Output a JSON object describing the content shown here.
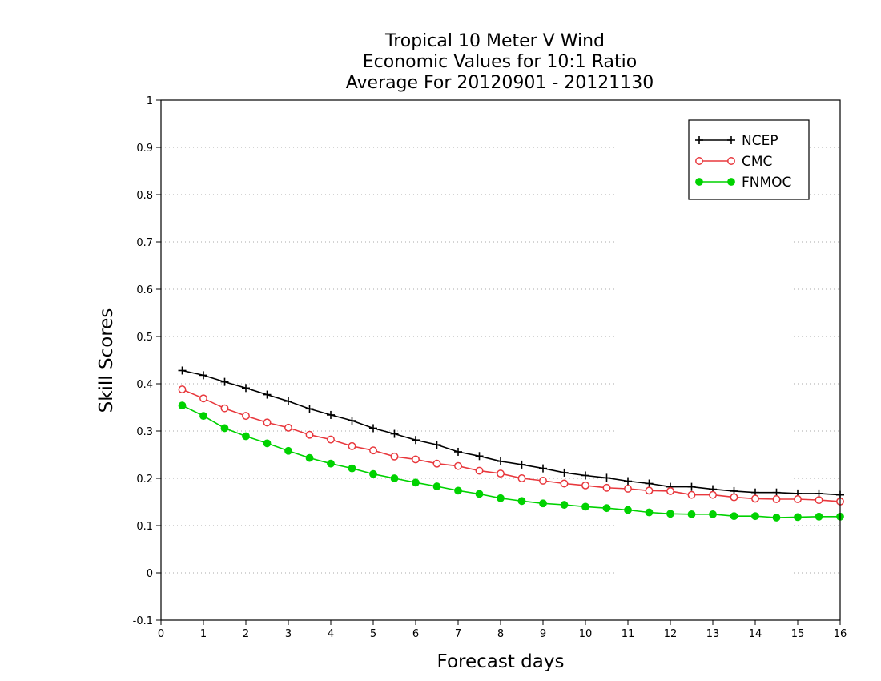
{
  "chart_data": {
    "type": "line",
    "title_lines": [
      "Tropical 10 Meter V Wind",
      "Economic Values for 10:1 Ratio",
      "Average For 20120901 - 20121130"
    ],
    "xlabel": "Forecast days",
    "ylabel": "Skill Scores",
    "xlim": [
      0,
      16
    ],
    "ylim": [
      -0.1,
      1
    ],
    "x_ticks": [
      0,
      1,
      2,
      3,
      4,
      5,
      6,
      7,
      8,
      9,
      10,
      11,
      12,
      13,
      14,
      15,
      16
    ],
    "y_ticks": [
      -0.1,
      0,
      0.1,
      0.2,
      0.3,
      0.4,
      0.5,
      0.6,
      0.7,
      0.8,
      0.9,
      1
    ],
    "y_tick_labels": [
      "-0.1",
      "0",
      "0.1",
      "0.2",
      "0.3",
      "0.4",
      "0.5",
      "0.6",
      "0.7",
      "0.8",
      "0.9",
      "1"
    ],
    "grid": "horizontal dotted",
    "legend_position": "top-right",
    "x": [
      0.5,
      1,
      1.5,
      2,
      2.5,
      3,
      3.5,
      4,
      4.5,
      5,
      5.5,
      6,
      6.5,
      7,
      7.5,
      8,
      8.5,
      9,
      9.5,
      10,
      10.5,
      11,
      11.5,
      12,
      12.5,
      13,
      13.5,
      14,
      14.5,
      15,
      15.5,
      16
    ],
    "series": [
      {
        "name": "NCEP",
        "color": "#000000",
        "marker": "plus",
        "values": [
          0.428,
          0.418,
          0.404,
          0.391,
          0.377,
          0.363,
          0.347,
          0.334,
          0.322,
          0.306,
          0.294,
          0.281,
          0.271,
          0.256,
          0.247,
          0.236,
          0.229,
          0.221,
          0.212,
          0.206,
          0.201,
          0.194,
          0.189,
          0.182,
          0.182,
          0.177,
          0.173,
          0.17,
          0.17,
          0.168,
          0.168,
          0.165
        ]
      },
      {
        "name": "CMC",
        "color": "#e8383d",
        "marker": "open-circle",
        "values": [
          0.388,
          0.369,
          0.348,
          0.332,
          0.318,
          0.307,
          0.292,
          0.282,
          0.268,
          0.259,
          0.246,
          0.24,
          0.231,
          0.226,
          0.216,
          0.21,
          0.2,
          0.195,
          0.189,
          0.185,
          0.18,
          0.178,
          0.174,
          0.173,
          0.165,
          0.165,
          0.16,
          0.157,
          0.156,
          0.156,
          0.154,
          0.151
        ]
      },
      {
        "name": "FNMOC",
        "color": "#00d200",
        "marker": "filled-circle",
        "values": [
          0.354,
          0.332,
          0.306,
          0.289,
          0.274,
          0.258,
          0.243,
          0.231,
          0.221,
          0.209,
          0.2,
          0.191,
          0.183,
          0.174,
          0.167,
          0.158,
          0.152,
          0.147,
          0.144,
          0.14,
          0.137,
          0.133,
          0.128,
          0.125,
          0.124,
          0.124,
          0.12,
          0.12,
          0.117,
          0.118,
          0.119,
          0.119
        ]
      }
    ]
  }
}
